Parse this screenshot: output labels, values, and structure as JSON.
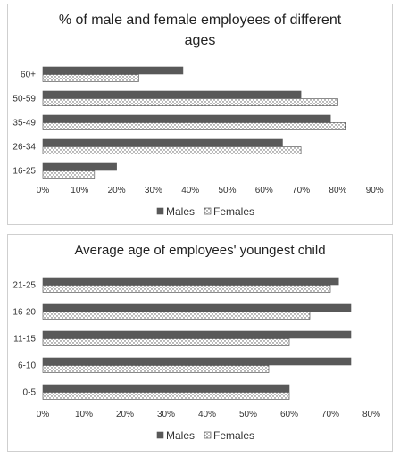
{
  "chart_data": [
    {
      "type": "bar",
      "orientation": "horizontal",
      "title_line1": "% of male and female employees of different",
      "title_line2": "ages",
      "categories": [
        "60+",
        "50-59",
        "35-49",
        "26-34",
        "16-25"
      ],
      "series": [
        {
          "name": "Males",
          "values": [
            38,
            70,
            78,
            65,
            20
          ],
          "color": "#595959",
          "pattern": "solid"
        },
        {
          "name": "Females",
          "values": [
            26,
            80,
            82,
            70,
            14
          ],
          "color": "#ffffff",
          "pattern": "dotted"
        }
      ],
      "x_ticks": [
        "0%",
        "10%",
        "20%",
        "30%",
        "40%",
        "50%",
        "60%",
        "70%",
        "80%",
        "90%"
      ],
      "xlim": [
        0,
        90
      ],
      "legend_position": "bottom",
      "grid": false
    },
    {
      "type": "bar",
      "orientation": "horizontal",
      "title_line1": "Average age of employees' youngest child",
      "title_line2": "",
      "categories": [
        "21-25",
        "16-20",
        "11-15",
        "6-10",
        "0-5"
      ],
      "series": [
        {
          "name": "Males",
          "values": [
            72,
            75,
            75,
            75,
            60
          ],
          "color": "#595959",
          "pattern": "solid"
        },
        {
          "name": "Females",
          "values": [
            70,
            65,
            60,
            55,
            60
          ],
          "color": "#ffffff",
          "pattern": "dotted"
        }
      ],
      "x_ticks": [
        "0%",
        "10%",
        "20%",
        "30%",
        "40%",
        "50%",
        "60%",
        "70%",
        "80%"
      ],
      "xlim": [
        0,
        80
      ],
      "legend_position": "bottom",
      "grid": false
    }
  ]
}
